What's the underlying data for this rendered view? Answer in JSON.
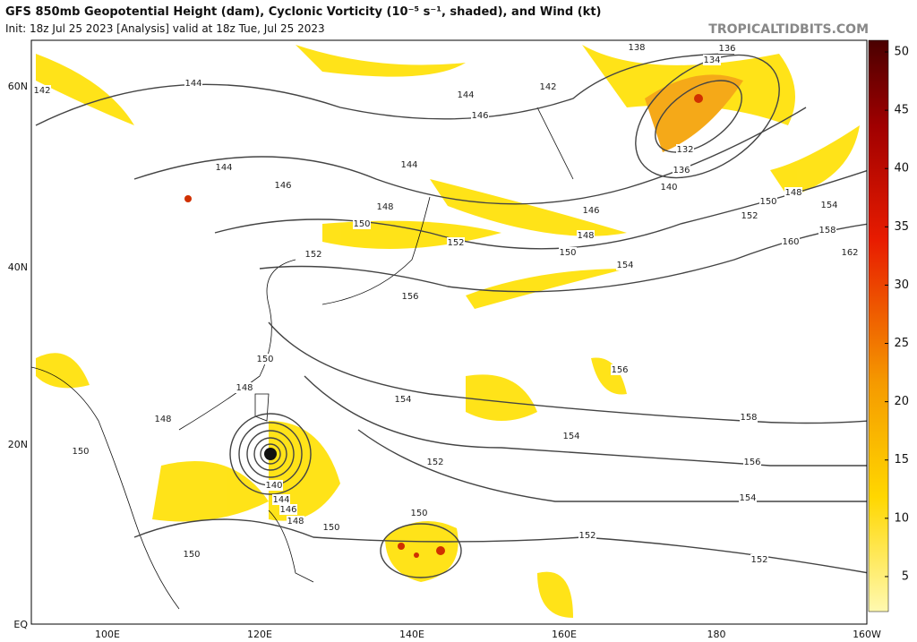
{
  "header": {
    "title": "GFS 850mb Geopotential Height (dam), Cyclonic Vorticity (10⁻⁵ s⁻¹, shaded), and Wind (kt)",
    "subtitle": "Init: 18z Jul 25 2023   [Analysis]   valid at 18z Tue, Jul 25 2023",
    "brand": "TROPICALTIDBITS.COM"
  },
  "map": {
    "lat_labels": [
      "60N",
      "40N",
      "20N",
      "EQ"
    ],
    "lon_labels": [
      "100E",
      "120E",
      "140E",
      "160E",
      "180",
      "160W"
    ],
    "contour_labels": [
      142,
      144,
      144,
      146,
      142,
      138,
      136,
      134,
      132,
      136,
      140,
      150,
      148,
      154,
      152,
      158,
      160,
      162,
      154,
      146,
      148,
      150,
      152,
      144,
      144,
      146,
      148,
      150,
      152,
      156,
      150,
      148,
      148,
      154,
      156,
      158,
      154,
      156,
      152,
      154,
      150,
      140,
      144,
      146,
      148,
      150,
      150,
      150,
      152,
      152
    ]
  },
  "colorbar": {
    "range": [
      2,
      51
    ],
    "ticks": [
      5,
      10,
      15,
      20,
      25,
      30,
      35,
      40,
      45,
      50
    ]
  }
}
